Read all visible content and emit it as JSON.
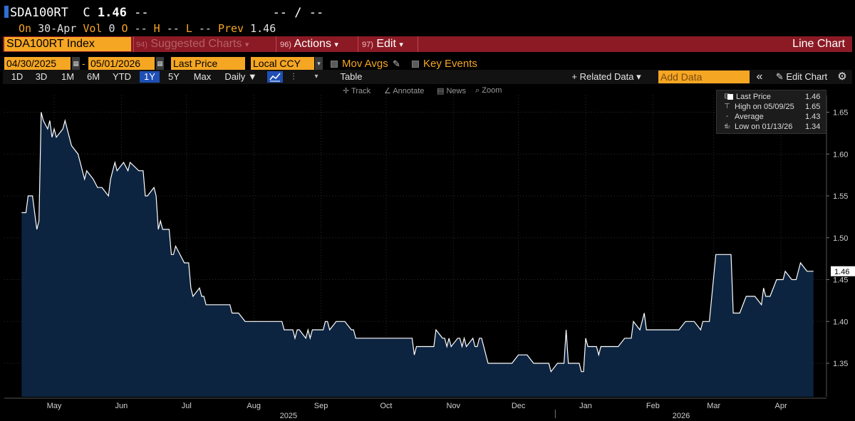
{
  "header": {
    "ticker": "SDA100RT",
    "close_label": "C",
    "last": "1.46",
    "dash1": "--",
    "right_dashes": "-- / --",
    "row2_on": "On",
    "row2_date": "30-Apr",
    "vol_label": "Vol",
    "vol_value": "0",
    "o_label": "O",
    "o_value": "--",
    "h_label": "H",
    "h_value": "--",
    "l_label": "L",
    "l_value": "--",
    "prev_label": "Prev",
    "prev_value": "1.46"
  },
  "menu_bar": {
    "security": "SDA100RT Index",
    "suggested_num": "94)",
    "suggested": "Suggested Charts",
    "actions_num": "96)",
    "actions": "Actions",
    "edit_num": "97)",
    "edit": "Edit",
    "chart_type": "Line Chart",
    "caret": "▾"
  },
  "controls": {
    "start_date": "04/30/2025",
    "end_date": "05/01/2026",
    "range_sep": "-",
    "field": "Last Price",
    "currency": "Local CCY",
    "mov_avgs": "Mov Avgs",
    "key_events": "Key Events"
  },
  "toolbar": {
    "periods": [
      "1D",
      "3D",
      "1M",
      "6M",
      "YTD",
      "1Y",
      "5Y",
      "Max"
    ],
    "selected_period": "1Y",
    "frequency": "Daily ▼",
    "table": "Table",
    "related_data": "+ Related Data ▾",
    "add_data_placeholder": "Add Data",
    "collapse": "«",
    "edit_chart": "✎ Edit Chart",
    "settings_icon": "gear-icon"
  },
  "chart_tools": {
    "track": "Track",
    "annotate": "Annotate",
    "news": "News",
    "zoom": "Zoom"
  },
  "legend": {
    "last_price_label": "Last Price",
    "last_price_value": "1.46",
    "high_label": "High on 05/09/25",
    "high_value": "1.65",
    "average_label": "Average",
    "average_value": "1.43",
    "low_label": "Low on 01/13/26",
    "low_value": "1.34"
  },
  "chart_data": {
    "type": "area",
    "title": "",
    "series": [
      {
        "name": "Last Price",
        "points": [
          [
            "2025-04-30",
            1.53
          ],
          [
            "2025-05-02",
            1.53
          ],
          [
            "2025-05-03",
            1.55
          ],
          [
            "2025-05-05",
            1.55
          ],
          [
            "2025-05-06",
            1.53
          ],
          [
            "2025-05-07",
            1.51
          ],
          [
            "2025-05-08",
            1.52
          ],
          [
            "2025-05-09",
            1.65
          ],
          [
            "2025-05-10",
            1.64
          ],
          [
            "2025-05-12",
            1.63
          ],
          [
            "2025-05-13",
            1.64
          ],
          [
            "2025-05-14",
            1.62
          ],
          [
            "2025-05-15",
            1.63
          ],
          [
            "2025-05-16",
            1.62
          ],
          [
            "2025-05-19",
            1.63
          ],
          [
            "2025-05-20",
            1.64
          ],
          [
            "2025-05-21",
            1.63
          ],
          [
            "2025-05-22",
            1.62
          ],
          [
            "2025-05-23",
            1.61
          ],
          [
            "2025-05-26",
            1.6
          ],
          [
            "2025-05-27",
            1.59
          ],
          [
            "2025-05-28",
            1.58
          ],
          [
            "2025-05-29",
            1.57
          ],
          [
            "2025-05-30",
            1.58
          ],
          [
            "2025-06-02",
            1.57
          ],
          [
            "2025-06-04",
            1.56
          ],
          [
            "2025-06-06",
            1.56
          ],
          [
            "2025-06-09",
            1.55
          ],
          [
            "2025-06-10",
            1.57
          ],
          [
            "2025-06-11",
            1.58
          ],
          [
            "2025-06-12",
            1.59
          ],
          [
            "2025-06-13",
            1.58
          ],
          [
            "2025-06-16",
            1.59
          ],
          [
            "2025-06-18",
            1.58
          ],
          [
            "2025-06-19",
            1.59
          ],
          [
            "2025-06-23",
            1.58
          ],
          [
            "2025-06-25",
            1.58
          ],
          [
            "2025-06-26",
            1.55
          ],
          [
            "2025-06-27",
            1.55
          ],
          [
            "2025-06-30",
            1.56
          ],
          [
            "2025-07-01",
            1.55
          ],
          [
            "2025-07-02",
            1.51
          ],
          [
            "2025-07-03",
            1.52
          ],
          [
            "2025-07-04",
            1.51
          ],
          [
            "2025-07-07",
            1.51
          ],
          [
            "2025-07-08",
            1.48
          ],
          [
            "2025-07-09",
            1.48
          ],
          [
            "2025-07-10",
            1.49
          ],
          [
            "2025-07-14",
            1.47
          ],
          [
            "2025-07-16",
            1.47
          ],
          [
            "2025-07-17",
            1.44
          ],
          [
            "2025-07-18",
            1.43
          ],
          [
            "2025-07-21",
            1.44
          ],
          [
            "2025-07-22",
            1.43
          ],
          [
            "2025-07-23",
            1.43
          ],
          [
            "2025-07-24",
            1.42
          ],
          [
            "2025-07-25",
            1.42
          ],
          [
            "2025-07-28",
            1.42
          ],
          [
            "2025-08-04",
            1.42
          ],
          [
            "2025-08-05",
            1.41
          ],
          [
            "2025-08-06",
            1.41
          ],
          [
            "2025-08-08",
            1.41
          ],
          [
            "2025-08-11",
            1.4
          ],
          [
            "2025-08-28",
            1.4
          ],
          [
            "2025-08-29",
            1.39
          ],
          [
            "2025-09-02",
            1.39
          ],
          [
            "2025-09-03",
            1.38
          ],
          [
            "2025-09-04",
            1.39
          ],
          [
            "2025-09-05",
            1.39
          ],
          [
            "2025-09-08",
            1.38
          ],
          [
            "2025-09-09",
            1.39
          ],
          [
            "2025-09-10",
            1.38
          ],
          [
            "2025-09-11",
            1.39
          ],
          [
            "2025-09-16",
            1.39
          ],
          [
            "2025-09-17",
            1.4
          ],
          [
            "2025-09-18",
            1.4
          ],
          [
            "2025-09-19",
            1.39
          ],
          [
            "2025-09-22",
            1.4
          ],
          [
            "2025-09-23",
            1.4
          ],
          [
            "2025-09-26",
            1.4
          ],
          [
            "2025-09-29",
            1.39
          ],
          [
            "2025-09-30",
            1.39
          ],
          [
            "2025-10-01",
            1.38
          ],
          [
            "2025-10-27",
            1.38
          ],
          [
            "2025-10-28",
            1.36
          ],
          [
            "2025-10-29",
            1.37
          ],
          [
            "2025-11-06",
            1.37
          ],
          [
            "2025-11-07",
            1.39
          ],
          [
            "2025-11-10",
            1.38
          ],
          [
            "2025-11-11",
            1.38
          ],
          [
            "2025-11-12",
            1.37
          ],
          [
            "2025-11-13",
            1.38
          ],
          [
            "2025-11-14",
            1.37
          ],
          [
            "2025-11-17",
            1.38
          ],
          [
            "2025-11-18",
            1.38
          ],
          [
            "2025-11-19",
            1.37
          ],
          [
            "2025-11-20",
            1.38
          ],
          [
            "2025-11-21",
            1.37
          ],
          [
            "2025-11-24",
            1.38
          ],
          [
            "2025-11-25",
            1.37
          ],
          [
            "2025-11-26",
            1.37
          ],
          [
            "2025-11-27",
            1.38
          ],
          [
            "2025-11-28",
            1.38
          ],
          [
            "2025-12-01",
            1.35
          ],
          [
            "2025-12-12",
            1.35
          ],
          [
            "2025-12-15",
            1.36
          ],
          [
            "2025-12-19",
            1.36
          ],
          [
            "2025-12-22",
            1.35
          ],
          [
            "2025-12-29",
            1.35
          ],
          [
            "2025-12-30",
            1.34
          ],
          [
            "2026-01-02",
            1.35
          ],
          [
            "2026-01-05",
            1.35
          ],
          [
            "2026-01-06",
            1.39
          ],
          [
            "2026-01-07",
            1.35
          ],
          [
            "2026-01-12",
            1.35
          ],
          [
            "2026-01-13",
            1.34
          ],
          [
            "2026-01-14",
            1.34
          ],
          [
            "2026-01-15",
            1.38
          ],
          [
            "2026-01-16",
            1.37
          ],
          [
            "2026-01-20",
            1.37
          ],
          [
            "2026-01-21",
            1.36
          ],
          [
            "2026-01-22",
            1.37
          ],
          [
            "2026-01-23",
            1.37
          ],
          [
            "2026-01-30",
            1.37
          ],
          [
            "2026-02-02",
            1.38
          ],
          [
            "2026-02-05",
            1.38
          ],
          [
            "2026-02-06",
            1.4
          ],
          [
            "2026-02-09",
            1.39
          ],
          [
            "2026-02-10",
            1.4
          ],
          [
            "2026-02-11",
            1.41
          ],
          [
            "2026-02-12",
            1.39
          ],
          [
            "2026-02-27",
            1.39
          ],
          [
            "2026-03-02",
            1.4
          ],
          [
            "2026-03-06",
            1.4
          ],
          [
            "2026-03-09",
            1.39
          ],
          [
            "2026-03-10",
            1.4
          ],
          [
            "2026-03-13",
            1.4
          ],
          [
            "2026-03-16",
            1.48
          ],
          [
            "2026-03-23",
            1.48
          ],
          [
            "2026-03-24",
            1.41
          ],
          [
            "2026-03-27",
            1.41
          ],
          [
            "2026-03-30",
            1.43
          ],
          [
            "2026-04-03",
            1.43
          ],
          [
            "2026-04-06",
            1.42
          ],
          [
            "2026-04-07",
            1.44
          ],
          [
            "2026-04-08",
            1.43
          ],
          [
            "2026-04-10",
            1.43
          ],
          [
            "2026-04-13",
            1.45
          ],
          [
            "2026-04-16",
            1.45
          ],
          [
            "2026-04-17",
            1.46
          ],
          [
            "2026-04-20",
            1.45
          ],
          [
            "2026-04-22",
            1.45
          ],
          [
            "2026-04-24",
            1.47
          ],
          [
            "2026-04-27",
            1.46
          ],
          [
            "2026-04-30",
            1.46
          ]
        ]
      }
    ],
    "x_range": [
      "2025-04-22",
      "2026-05-06"
    ],
    "ylim": [
      1.31,
      1.67
    ],
    "y_ticks": [
      1.35,
      1.4,
      1.45,
      1.5,
      1.55,
      1.6,
      1.65
    ],
    "y_tick_labels": [
      "1.35",
      "1.40",
      "1.45",
      "1.50",
      "1.55",
      "1.60",
      "1.65"
    ],
    "x_ticks": [
      "2025-05-15",
      "2025-06-15",
      "2025-07-15",
      "2025-08-15",
      "2025-09-15",
      "2025-10-15",
      "2025-11-15",
      "2025-12-15",
      "2026-01-15",
      "2026-02-15",
      "2026-03-15",
      "2026-04-15"
    ],
    "x_tick_labels": [
      "May",
      "Jun",
      "Jul",
      "Aug",
      "Sep",
      "Oct",
      "Nov",
      "Dec",
      "Jan",
      "Feb",
      "Mar",
      "Apr"
    ],
    "year_labels": [
      {
        "text": "2025",
        "at": "2025-08-31"
      },
      {
        "text": "2026",
        "at": "2026-02-28"
      }
    ],
    "year_divider": "2026-01-01",
    "last_value_tag": "1.46",
    "grid": true,
    "legend_position": "top-right",
    "colors": {
      "line": "#ffffff",
      "fill": "#0d2440",
      "background": "#000000",
      "grid": "#2c2c2c",
      "axis_text": "#cfcfcf"
    }
  }
}
